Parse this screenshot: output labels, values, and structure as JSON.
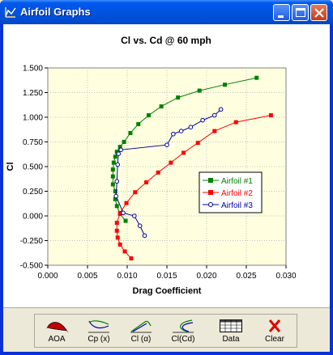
{
  "window": {
    "title": "Airfoil Graphs"
  },
  "chart_data": {
    "type": "line",
    "title": "Cl vs. Cd @ 60 mph",
    "xlabel": "Drag Coefficient",
    "ylabel": "Cl",
    "xlim": [
      0,
      0.03
    ],
    "ylim": [
      -0.5,
      1.5
    ],
    "xticks": [
      "0.000",
      "0.005",
      "0.010",
      "0.015",
      "0.020",
      "0.025",
      "0.030"
    ],
    "yticks": [
      "-0.500",
      "-0.250",
      "0.000",
      "0.250",
      "0.500",
      "0.750",
      "1.000",
      "1.250",
      "1.500"
    ],
    "legend_position": "right-middle",
    "series": [
      {
        "name": "Airfoil #1",
        "color": "#008000",
        "marker": "square",
        "x": [
          0.0098,
          0.0091,
          0.0087,
          0.0085,
          0.0085,
          0.0082,
          0.0082,
          0.0082,
          0.0083,
          0.0085,
          0.0087,
          0.0091,
          0.0096,
          0.0104,
          0.0114,
          0.0127,
          0.0143,
          0.0164,
          0.0191,
          0.0223,
          0.0263
        ],
        "y": [
          -0.05,
          0.02,
          0.1,
          0.17,
          0.25,
          0.32,
          0.4,
          0.47,
          0.54,
          0.6,
          0.65,
          0.7,
          0.75,
          0.84,
          0.93,
          1.02,
          1.11,
          1.2,
          1.27,
          1.33,
          1.4
        ]
      },
      {
        "name": "Airfoil #2",
        "color": "#ff0000",
        "marker": "square",
        "x": [
          0.0105,
          0.0097,
          0.0091,
          0.0088,
          0.0087,
          0.0087,
          0.0091,
          0.0099,
          0.011,
          0.0124,
          0.0139,
          0.0155,
          0.0171,
          0.0189,
          0.021,
          0.0237,
          0.0281
        ],
        "y": [
          -0.43,
          -0.36,
          -0.29,
          -0.22,
          -0.15,
          -0.07,
          0.03,
          0.13,
          0.24,
          0.34,
          0.44,
          0.54,
          0.64,
          0.74,
          0.86,
          0.95,
          1.02
        ]
      },
      {
        "name": "Airfoil #3",
        "color": "#0000a0",
        "marker": "circle",
        "x": [
          0.0122,
          0.0116,
          0.0109,
          0.0095,
          0.0086,
          0.0087,
          0.0088,
          0.0089,
          0.0092,
          0.015,
          0.0158,
          0.0168,
          0.018,
          0.0195,
          0.021,
          0.0218
        ],
        "y": [
          -0.2,
          -0.1,
          0.0,
          0.03,
          0.2,
          0.35,
          0.52,
          0.63,
          0.67,
          0.72,
          0.83,
          0.86,
          0.9,
          0.97,
          1.02,
          1.08
        ]
      }
    ]
  },
  "toolbar": {
    "buttons": [
      {
        "label": "AOA",
        "icon": "airfoil-icon"
      },
      {
        "label": "Cp (x)",
        "icon": "cp-curve-icon"
      },
      {
        "label": "Cl (α)",
        "icon": "cl-alpha-curve-icon"
      },
      {
        "label": "Cl(Cd)",
        "icon": "cl-cd-curve-icon"
      },
      {
        "label": "Data",
        "icon": "data-table-icon"
      },
      {
        "label": "Clear",
        "icon": "clear-x-icon"
      }
    ]
  }
}
